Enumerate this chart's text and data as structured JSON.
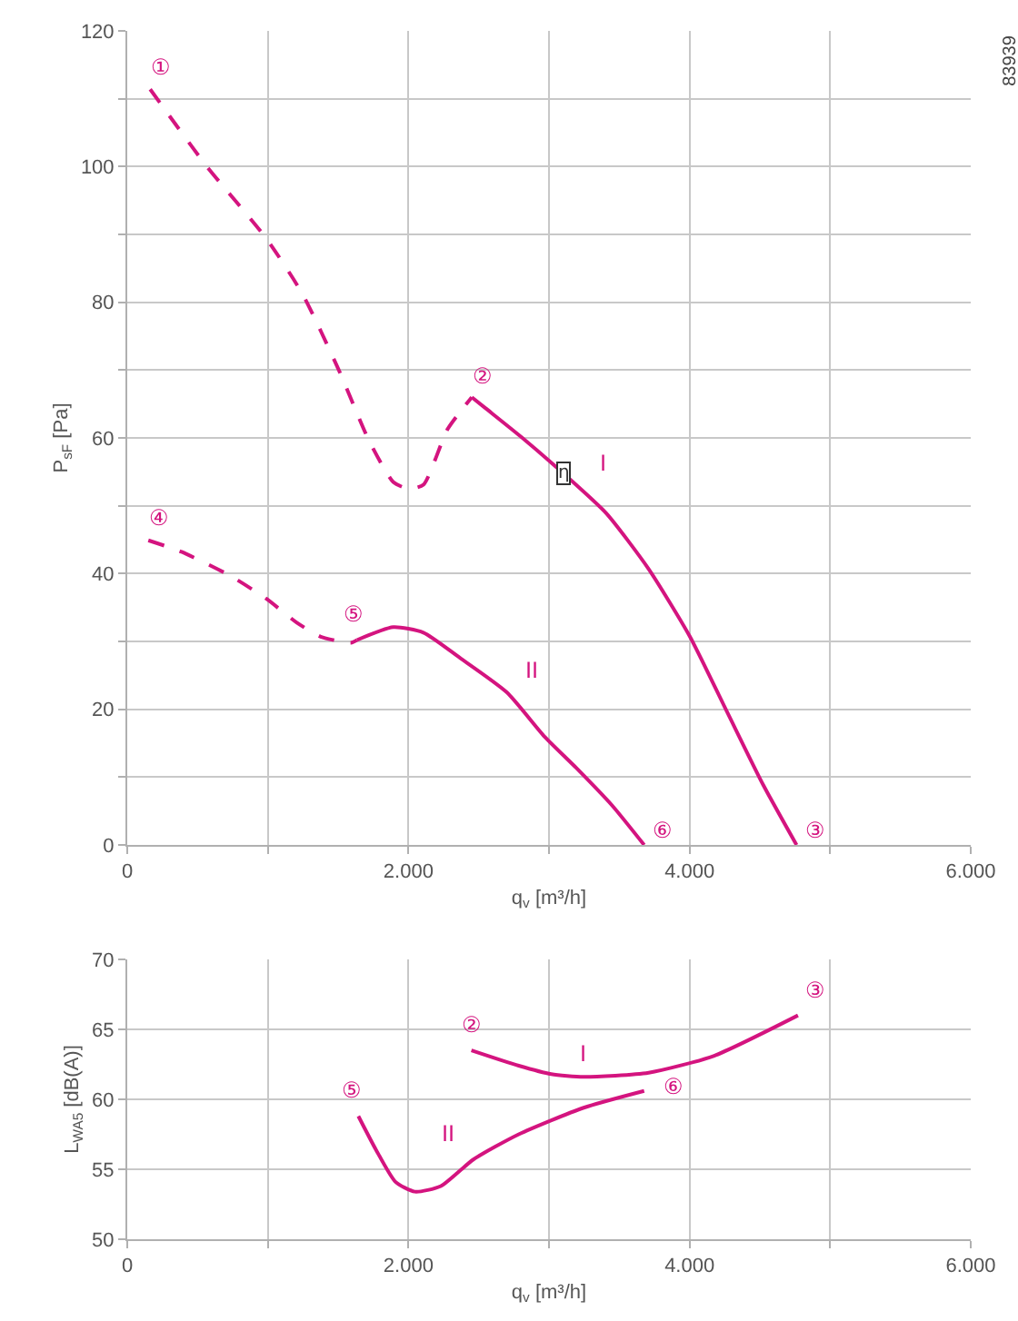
{
  "chart_data": [
    {
      "type": "line",
      "xlabel": "q$_{v}$ [m³/h]",
      "ylabel": "P$_{sF}$ [Pa]",
      "xlim": [
        0,
        6000
      ],
      "ylim": [
        0,
        120
      ],
      "xticks": [
        0,
        {
          "value": 1000,
          "label": null
        },
        {
          "value": 2000,
          "label": "2.000"
        },
        {
          "value": 3000,
          "label": null
        },
        {
          "value": 4000,
          "label": "4.000"
        },
        {
          "value": 5000,
          "label": null
        },
        {
          "value": 6000,
          "label": "6.000"
        }
      ],
      "yticks": [
        0,
        {
          "value": 10,
          "label": null
        },
        20,
        {
          "value": 30,
          "label": null
        },
        40,
        {
          "value": 50,
          "label": null
        },
        60,
        {
          "value": 70,
          "label": null
        },
        80,
        {
          "value": 90,
          "label": null
        },
        100,
        {
          "value": 110,
          "label": null
        },
        120
      ],
      "grid": true,
      "series": [
        {
          "color": "#d4147f",
          "line_style": "dashed",
          "x": [
            163,
            559,
            989,
            1247,
            1505,
            1720,
            1892,
            2000,
            2107,
            2279,
            2451
          ],
          "values": [
            111.4,
            100.2,
            89.4,
            81.2,
            70,
            59.6,
            53.5,
            52.5,
            53.1,
            61.3,
            66
          ]
        },
        {
          "color": "#d4147f",
          "line_style": "solid",
          "x": [
            2451,
            2547,
            2805,
            3106,
            3407,
            3708,
            4000,
            4267,
            4525,
            4761
          ],
          "values": [
            66,
            64.4,
            60.1,
            54.7,
            48.9,
            40.7,
            30.8,
            19.6,
            8.8,
            0
          ]
        },
        {
          "color": "#d4147f",
          "line_style": "dashed",
          "x": [
            150,
            387,
            731,
            989,
            1204,
            1376,
            1591,
            1634
          ],
          "values": [
            44.9,
            43.2,
            39.7,
            36.3,
            32.8,
            30.7,
            29.8,
            30.2
          ]
        },
        {
          "color": "#d4147f",
          "line_style": "solid",
          "x": [
            1634,
            1892,
            2107,
            2365,
            2700,
            2967,
            3192,
            3450,
            3677
          ],
          "values": [
            30.2,
            32.1,
            31.3,
            27.6,
            22.5,
            16,
            11.4,
            5.8,
            0
          ]
        }
      ],
      "annotations": [
        {
          "text": "①",
          "x": 163,
          "y": 111.4
        },
        {
          "text": "②",
          "x": 2451,
          "y": 66
        },
        {
          "text": "③",
          "x": 4761,
          "y": 0
        },
        {
          "text": "④",
          "x": 150,
          "y": 44.9
        },
        {
          "text": "⑤",
          "x": 1634,
          "y": 30.2
        },
        {
          "text": "⑥",
          "x": 3677,
          "y": 0
        },
        {
          "text": "η",
          "x": 3106,
          "y": 54.7
        },
        {
          "text": "I",
          "x": 3106,
          "y": 54.7
        },
        {
          "text": "II",
          "x": 2700,
          "y": 22.5
        },
        "83939"
      ]
    },
    {
      "type": "line",
      "xlabel": "q$_{v}$ [m³/h]",
      "ylabel": "L$_{WA5}$ [dB(A)]",
      "xlim": [
        0,
        6000
      ],
      "ylim": [
        50,
        70
      ],
      "xticks": [
        0,
        {
          "value": 1000,
          "label": null
        },
        {
          "value": 2000,
          "label": "2.000"
        },
        {
          "value": 3000,
          "label": null
        },
        {
          "value": 4000,
          "label": "4.000"
        },
        {
          "value": 5000,
          "label": null
        },
        {
          "value": 6000,
          "label": "6.000"
        }
      ],
      "yticks": [
        50,
        55,
        60,
        65,
        70
      ],
      "grid": true,
      "series": [
        {
          "color": "#d4147f",
          "line_style": "solid",
          "x": [
            2448,
            2785,
            3016,
            3247,
            3709,
            4171,
            4771
          ],
          "values": [
            63.5,
            62.4,
            61.8,
            61.6,
            61.9,
            63.1,
            66
          ]
        },
        {
          "color": "#d4147f",
          "line_style": "solid",
          "x": [
            1644,
            1769,
            1908,
            2046,
            2231,
            2462,
            2785,
            3247,
            3677
          ],
          "values": [
            58.8,
            56.4,
            54.1,
            53.4,
            53.8,
            55.7,
            57.5,
            59.4,
            60.6
          ]
        }
      ],
      "annotations": [
        {
          "text": "②",
          "x": 2448,
          "y": 63.5
        },
        {
          "text": "③",
          "x": 4771,
          "y": 66
        },
        {
          "text": "⑤",
          "x": 1644,
          "y": 58.8
        },
        {
          "text": "⑥",
          "x": 3677,
          "y": 60.6
        },
        {
          "text": "I",
          "x": 3247,
          "y": 61.6
        },
        {
          "text": "II",
          "x": 2462,
          "y": 55.7
        }
      ]
    }
  ]
}
